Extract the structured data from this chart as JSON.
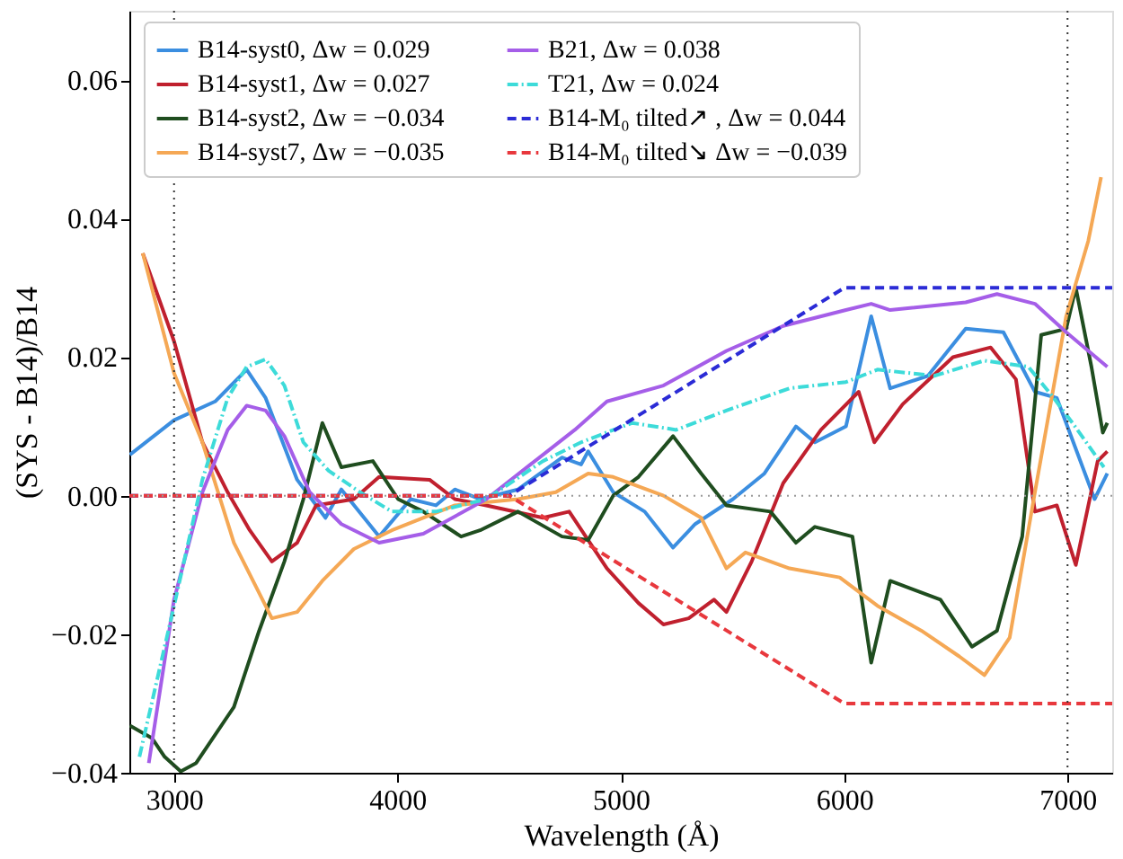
{
  "chart_data": {
    "type": "line",
    "xlabel": "Wavelength (Å)",
    "ylabel": "(SYS - B14)/B14",
    "xlim": [
      2800,
      7200
    ],
    "ylim": [
      -0.04,
      0.07
    ],
    "xticks": [
      3000,
      4000,
      5000,
      6000,
      7000
    ],
    "yticks": [
      {
        "value": -0.04,
        "label": "−0.04"
      },
      {
        "value": -0.02,
        "label": "−0.02"
      },
      {
        "value": 0,
        "label": "0.00"
      },
      {
        "value": 0.02,
        "label": "0.02"
      },
      {
        "value": 0.04,
        "label": "0.04"
      },
      {
        "value": 0.06,
        "label": "0.06"
      }
    ],
    "grid": false,
    "legend": "top",
    "marker": "none",
    "ref_lines": [
      {
        "axis": "x",
        "value": 3000,
        "color": "#333333",
        "line_style": "dotted"
      },
      {
        "axis": "x",
        "value": 7000,
        "color": "#333333",
        "line_style": "dotted"
      },
      {
        "axis": "y",
        "value": 0,
        "color": "#999999",
        "line_style": "dotted"
      }
    ],
    "series": [
      {
        "name": "B14-syst0, Δw = 0.029",
        "color": "#3b8ee0",
        "line_style": "solid",
        "x": [
          2802,
          3000,
          3184,
          3325,
          3410,
          3551,
          3678,
          3749,
          3918,
          4059,
          4172,
          4257,
          4370,
          4540,
          4737,
          4822,
          4854,
          4966,
          5107,
          5234,
          5333,
          5502,
          5643,
          5784,
          5869,
          6008,
          6121,
          6206,
          6375,
          6544,
          6713,
          6854,
          6952,
          7121,
          7178
        ],
        "values": [
          0.0059,
          0.0109,
          0.0136,
          0.0182,
          0.0141,
          0.0023,
          -0.0032,
          0.0009,
          -0.0059,
          -0.0005,
          -0.0014,
          0.0009,
          -0.0005,
          0.0009,
          0.0055,
          0.0045,
          0.0064,
          0.0005,
          -0.0023,
          -0.0075,
          -0.0041,
          -0.0005,
          0.0032,
          0.01,
          0.0077,
          0.01,
          0.0259,
          0.0155,
          0.0173,
          0.0241,
          0.0236,
          0.015,
          0.0141,
          -0.0005,
          0.0032
        ]
      },
      {
        "name": "B14-syst1, Δw = 0.027",
        "color": "#c0202e",
        "line_style": "solid",
        "x": [
          2860,
          3000,
          3127,
          3240,
          3339,
          3438,
          3551,
          3636,
          3805,
          3918,
          4144,
          4257,
          4398,
          4652,
          4769,
          4938,
          5079,
          5191,
          5304,
          5417,
          5473,
          5586,
          5727,
          5896,
          6065,
          6135,
          6262,
          6487,
          6656,
          6769,
          6854,
          6952,
          7037,
          7135,
          7178
        ],
        "values": [
          0.035,
          0.0223,
          0.0077,
          0.0005,
          -0.005,
          -0.0095,
          -0.0068,
          -0.0014,
          -0.0005,
          0.0027,
          0.0023,
          -0.0005,
          -0.0014,
          -0.0032,
          -0.0023,
          -0.0105,
          -0.0155,
          -0.0186,
          -0.0177,
          -0.015,
          -0.0168,
          -0.0095,
          0.0018,
          0.0095,
          0.015,
          0.0077,
          0.0132,
          0.02,
          0.0214,
          0.0168,
          -0.0023,
          -0.0014,
          -0.01,
          0.005,
          0.0064
        ]
      },
      {
        "name": "B14-syst2, Δw = −0.034",
        "color": "#1f4d1f",
        "line_style": "solid",
        "x": [
          2802,
          2901,
          2958,
          3030,
          3099,
          3268,
          3381,
          3494,
          3579,
          3664,
          3749,
          3890,
          4003,
          4116,
          4285,
          4370,
          4540,
          4737,
          4854,
          4966,
          5079,
          5234,
          5360,
          5473,
          5670,
          5784,
          5869,
          6037,
          6121,
          6206,
          6431,
          6572,
          6684,
          6797,
          6882,
          6994,
          7037,
          7107,
          7158,
          7178
        ],
        "values": [
          -0.0332,
          -0.035,
          -0.0377,
          -0.0398,
          -0.0386,
          -0.0305,
          -0.0195,
          -0.0095,
          -0.0005,
          0.0105,
          0.0041,
          0.005,
          -0.0005,
          -0.0023,
          -0.0059,
          -0.005,
          -0.0023,
          -0.0059,
          -0.0064,
          0.0,
          0.0027,
          0.0086,
          0.0032,
          -0.0014,
          -0.0023,
          -0.0068,
          -0.0045,
          -0.0059,
          -0.0241,
          -0.0123,
          -0.015,
          -0.0218,
          -0.0195,
          -0.0059,
          0.0232,
          0.0241,
          0.03,
          0.0186,
          0.0091,
          0.0105
        ]
      },
      {
        "name": "B14-syst7, Δw = −0.035",
        "color": "#f5a855",
        "line_style": "solid",
        "x": [
          2860,
          3000,
          3127,
          3268,
          3438,
          3551,
          3664,
          3805,
          3975,
          4257,
          4540,
          4709,
          4854,
          4966,
          5191,
          5360,
          5473,
          5558,
          5755,
          5980,
          6149,
          6346,
          6515,
          6628,
          6741,
          6854,
          6994,
          7093,
          7150
        ],
        "values": [
          0.035,
          0.0177,
          0.0077,
          -0.0068,
          -0.0177,
          -0.0168,
          -0.0123,
          -0.0077,
          -0.005,
          -0.0014,
          -0.0005,
          0.0005,
          0.0032,
          0.0027,
          0.0,
          -0.0032,
          -0.0105,
          -0.0082,
          -0.0105,
          -0.0118,
          -0.0159,
          -0.0195,
          -0.0232,
          -0.0259,
          -0.0205,
          0.0005,
          0.0259,
          0.0368,
          0.046
        ]
      },
      {
        "name": "B21, Δw = 0.038",
        "color": "#a55ee8",
        "line_style": "solid",
        "x": [
          2887,
          3000,
          3127,
          3240,
          3325,
          3410,
          3494,
          3607,
          3749,
          3918,
          4116,
          4398,
          4596,
          4794,
          4938,
          5191,
          5473,
          5727,
          6008,
          6121,
          6206,
          6544,
          6684,
          6854,
          6994,
          7178
        ],
        "values": [
          -0.0386,
          -0.015,
          0.0005,
          0.0095,
          0.013,
          0.0123,
          0.0086,
          0.0005,
          -0.0041,
          -0.0068,
          -0.0055,
          -0.0005,
          0.0045,
          0.0095,
          0.0136,
          0.0159,
          0.0209,
          0.0245,
          0.0268,
          0.0277,
          0.0268,
          0.0279,
          0.0291,
          0.0277,
          0.0236,
          0.0186
        ]
      },
      {
        "name": "T21, Δw = 0.024",
        "color": "#3ddbd9",
        "line_style": "dashdot",
        "x": [
          2845,
          3000,
          3127,
          3240,
          3325,
          3410,
          3494,
          3579,
          3692,
          3833,
          3975,
          4172,
          4398,
          4652,
          4822,
          4935,
          5051,
          5248,
          5473,
          5755,
          6008,
          6149,
          6403,
          6628,
          6825,
          6938,
          7022,
          7163
        ],
        "values": [
          -0.0377,
          -0.0159,
          0.0023,
          0.0141,
          0.0186,
          0.0197,
          0.0159,
          0.0077,
          0.0036,
          0.0005,
          -0.0023,
          -0.0023,
          -0.0005,
          0.005,
          0.0077,
          0.0091,
          0.0105,
          0.0095,
          0.0123,
          0.0155,
          0.0164,
          0.0182,
          0.0173,
          0.0195,
          0.0186,
          0.0141,
          0.0105,
          0.0041
        ]
      },
      {
        "name": "B14-M₀ tilted↗ , Δw = 0.044",
        "color": "#2b2bd6",
        "line_style": "dashed",
        "x": [
          2800,
          4500,
          6000,
          7200
        ],
        "values": [
          0,
          0,
          0.03,
          0.03
        ]
      },
      {
        "name": "B14-M₀ tilted↘ Δw = −0.039",
        "color": "#e8383d",
        "line_style": "dashed",
        "x": [
          2800,
          4500,
          6000,
          7200
        ],
        "values": [
          0,
          0,
          -0.03,
          -0.03
        ]
      }
    ]
  }
}
